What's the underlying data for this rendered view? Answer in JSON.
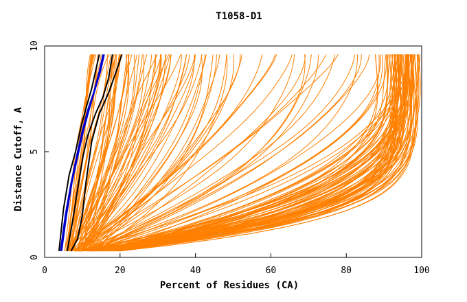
{
  "chart_data": {
    "type": "line",
    "title": "T1058-D1",
    "xlabel": "Percent of Residues (CA)",
    "ylabel": "Distance Cutoff, A",
    "xlim": [
      0,
      100
    ],
    "ylim": [
      0,
      10
    ],
    "x_ticks": [
      0,
      20,
      40,
      60,
      80,
      100
    ],
    "y_ticks": [
      0,
      5,
      10
    ],
    "grid": false,
    "colors": {
      "orange": "#ff8000",
      "black": "#000000",
      "blue": "#0000cc"
    },
    "series": [
      {
        "color": "#0000cc",
        "x": [
          4.2,
          5.5,
          7.0,
          8.5,
          10.0,
          11.5,
          13.0,
          14.5,
          15.5
        ],
        "y": [
          0.3,
          2.0,
          3.5,
          4.8,
          6.0,
          7.0,
          7.8,
          8.8,
          9.6
        ]
      },
      {
        "color": "#0000cc",
        "x": [
          4.5,
          5.8,
          7.3,
          8.8,
          10.3,
          11.8,
          13.3,
          14.8,
          15.8
        ],
        "y": [
          0.3,
          2.0,
          3.6,
          4.8,
          6.0,
          7.0,
          7.9,
          8.8,
          9.6
        ]
      },
      {
        "color": "#000000",
        "x": [
          3.8,
          5.0,
          6.5,
          8.2,
          9.8,
          11.2,
          12.5,
          13.5,
          14.5
        ],
        "y": [
          0.3,
          2.3,
          3.9,
          5.0,
          6.3,
          7.2,
          8.0,
          8.8,
          9.6
        ]
      },
      {
        "color": "#000000",
        "x": [
          6.0,
          7.5,
          9.0,
          10.2,
          11.5,
          13.5,
          15.5,
          17.0,
          18.0
        ],
        "y": [
          0.3,
          1.8,
          3.5,
          4.8,
          5.8,
          6.8,
          7.6,
          8.5,
          9.6
        ]
      },
      {
        "color": "#000000",
        "x": [
          7.0,
          8.8,
          10.0,
          11.0,
          12.5,
          14.5,
          17.0,
          19.0,
          20.5
        ],
        "y": [
          0.3,
          0.9,
          2.0,
          3.6,
          5.5,
          6.8,
          7.8,
          8.8,
          9.6
        ]
      }
    ],
    "orange_families": [
      {
        "count": 14,
        "x_start": [
          5,
          8
        ],
        "x_end": [
          12,
          18
        ],
        "curvature": 1.0
      },
      {
        "count": 45,
        "x_start": [
          6,
          12
        ],
        "x_end": [
          18,
          40
        ],
        "curvature": 1.4
      },
      {
        "count": 30,
        "x_start": [
          7,
          14
        ],
        "x_end": [
          40,
          90
        ],
        "curvature": 1.8
      },
      {
        "count": 30,
        "x_start": [
          8,
          20
        ],
        "x_end": [
          88,
          99
        ],
        "curvature": 3.0
      },
      {
        "count": 55,
        "x_start": [
          8,
          20
        ],
        "x_end": [
          92,
          100
        ],
        "curvature": 5.0
      }
    ]
  }
}
